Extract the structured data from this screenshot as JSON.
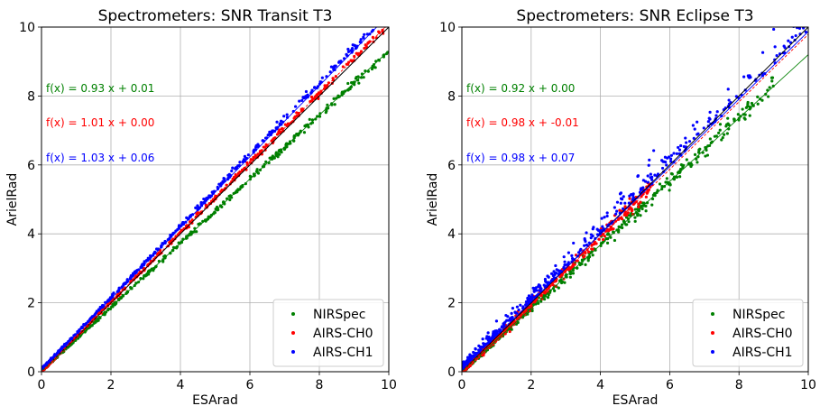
{
  "chart_data": [
    {
      "type": "scatter",
      "title": "Spectrometers: SNR Transit T3",
      "xlabel": "ESArad",
      "ylabel": "ArielRad",
      "xlim": [
        0,
        10
      ],
      "ylim": [
        0,
        10
      ],
      "xticks": [
        0,
        2,
        4,
        6,
        8,
        10
      ],
      "yticks": [
        0,
        2,
        4,
        6,
        8,
        10
      ],
      "grid": true,
      "legend_position": "lower-right",
      "identity_line": true,
      "series": [
        {
          "name": "NIRSpec",
          "color": "#008000",
          "fit": {
            "slope": 0.93,
            "intercept": 0.01,
            "label": "f(x) = 0.93 x + 0.01"
          },
          "xrange": [
            0,
            10.0
          ],
          "spread": 0.03
        },
        {
          "name": "AIRS-CH0",
          "color": "#ff0000",
          "fit": {
            "slope": 1.01,
            "intercept": 0.0,
            "label": "f(x) = 1.01 x + 0.00"
          },
          "xrange": [
            0,
            9.9
          ],
          "spread": 0.03
        },
        {
          "name": "AIRS-CH1",
          "color": "#0000ff",
          "fit": {
            "slope": 1.03,
            "intercept": 0.06,
            "label": "f(x) = 1.03 x + 0.06"
          },
          "xrange": [
            0,
            9.6
          ],
          "spread": 0.06
        }
      ]
    },
    {
      "type": "scatter",
      "title": "Spectrometers: SNR Eclipse T3",
      "xlabel": "ESArad",
      "ylabel": "ArielRad",
      "xlim": [
        0,
        10
      ],
      "ylim": [
        0,
        10
      ],
      "xticks": [
        0,
        2,
        4,
        6,
        8,
        10
      ],
      "yticks": [
        0,
        2,
        4,
        6,
        8,
        10
      ],
      "grid": true,
      "legend_position": "lower-right",
      "identity_line": true,
      "series": [
        {
          "name": "NIRSpec",
          "color": "#008000",
          "fit": {
            "slope": 0.92,
            "intercept": 0.0,
            "label": "f(x) = 0.92 x + 0.00"
          },
          "xrange": [
            0,
            9.0
          ],
          "spread": 0.08
        },
        {
          "name": "AIRS-CH0",
          "color": "#ff0000",
          "fit": {
            "slope": 0.98,
            "intercept": -0.01,
            "label": "f(x) = 0.98 x + -0.01"
          },
          "xrange": [
            0,
            5.5
          ],
          "spread": 0.1
        },
        {
          "name": "AIRS-CH1",
          "color": "#0000ff",
          "fit": {
            "slope": 0.98,
            "intercept": 0.07,
            "label": "f(x) = 0.98 x + 0.07"
          },
          "xrange": [
            0,
            10.0
          ],
          "spread": 0.25
        }
      ]
    }
  ]
}
